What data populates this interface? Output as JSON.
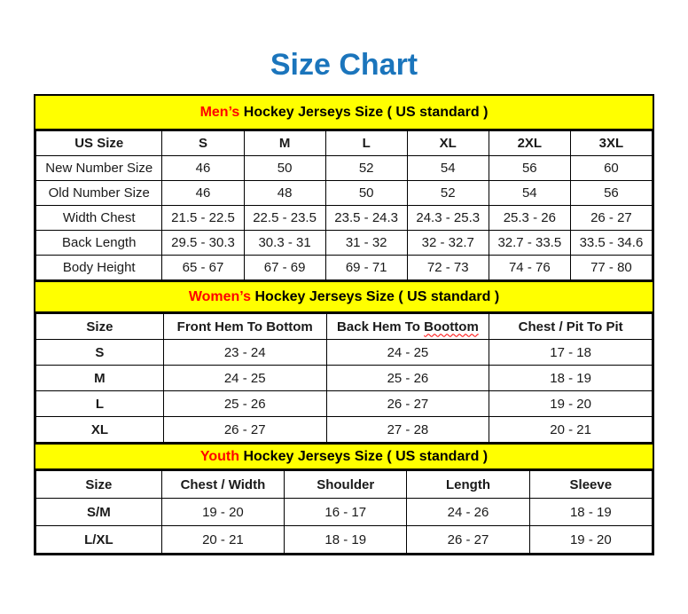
{
  "title": "Size Chart",
  "colors": {
    "title_blue": "#1B75BC",
    "band_yellow": "#FFFF00",
    "accent_red": "#FF0000",
    "border_black": "#000000",
    "background": "#FFFFFF"
  },
  "chart_data": [
    {
      "type": "table",
      "id": "mens",
      "band": {
        "highlight": "Men’s",
        "rest": " Hockey Jerseys Size ( US standard )"
      },
      "columns": [
        "US Size",
        "S",
        "M",
        "L",
        "XL",
        "2XL",
        "3XL"
      ],
      "rows": [
        {
          "label": "New Number Size",
          "values": [
            "46",
            "50",
            "52",
            "54",
            "56",
            "60"
          ]
        },
        {
          "label": "Old Number Size",
          "values": [
            "46",
            "48",
            "50",
            "52",
            "54",
            "56"
          ]
        },
        {
          "label": "Width Chest",
          "values": [
            "21.5 - 22.5",
            "22.5 - 23.5",
            "23.5 - 24.3",
            "24.3 - 25.3",
            "25.3 - 26",
            "26 - 27"
          ]
        },
        {
          "label": "Back Length",
          "values": [
            "29.5 - 30.3",
            "30.3 - 31",
            "31 - 32",
            "32 - 32.7",
            "32.7 - 33.5",
            "33.5 - 34.6"
          ]
        },
        {
          "label": "Body Height",
          "values": [
            "65 - 67",
            "67 - 69",
            "69 - 71",
            "72 - 73",
            "74 - 76",
            "77 - 80"
          ]
        }
      ]
    },
    {
      "type": "table",
      "id": "womens",
      "band": {
        "highlight": "Women’s",
        "rest": " Hockey Jerseys Size ( US standard )"
      },
      "columns": [
        "Size",
        "Front Hem To Bottom",
        "Back Hem To Boottom",
        "Chest / Pit To Pit"
      ],
      "misspell": {
        "column_index": 2,
        "prefix": "Back Hem To ",
        "word": "Boottom"
      },
      "rows": [
        {
          "label": "S",
          "values": [
            "23 - 24",
            "24 - 25",
            "17 - 18"
          ]
        },
        {
          "label": "M",
          "values": [
            "24 - 25",
            "25 - 26",
            "18 - 19"
          ]
        },
        {
          "label": "L",
          "values": [
            "25 - 26",
            "26 - 27",
            "19 - 20"
          ]
        },
        {
          "label": "XL",
          "values": [
            "26 - 27",
            "27 - 28",
            "20 - 21"
          ]
        }
      ]
    },
    {
      "type": "table",
      "id": "youth",
      "band": {
        "highlight": "Youth",
        "rest": " Hockey Jerseys Size ( US standard )"
      },
      "columns": [
        "Size",
        "Chest / Width",
        "Shoulder",
        "Length",
        "Sleeve"
      ],
      "rows": [
        {
          "label": "S/M",
          "values": [
            "19 - 20",
            "16 - 17",
            "24 - 26",
            "18 - 19"
          ]
        },
        {
          "label": "L/XL",
          "values": [
            "20 - 21",
            "18 - 19",
            "26 - 27",
            "19 - 20"
          ]
        }
      ]
    }
  ]
}
